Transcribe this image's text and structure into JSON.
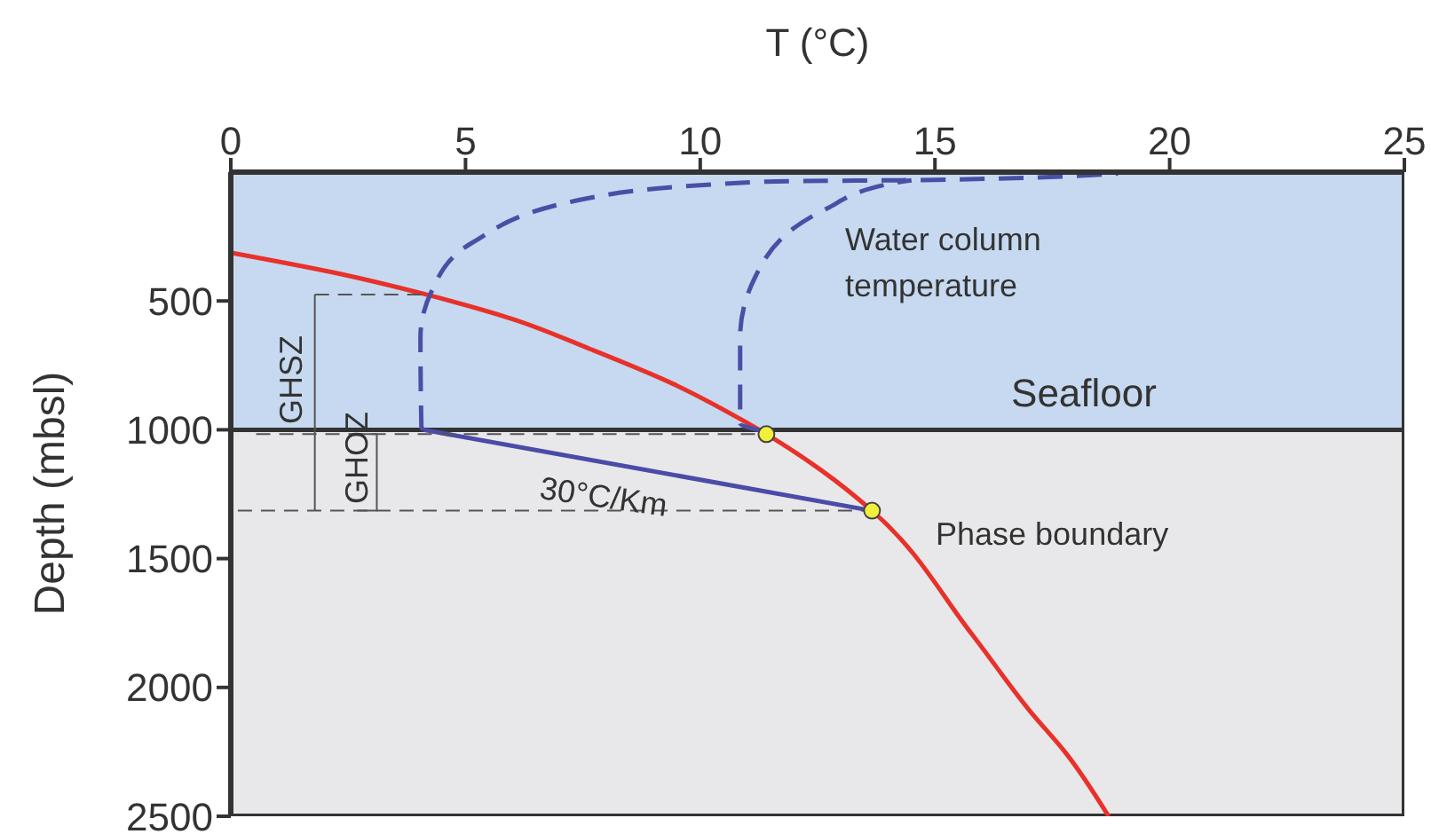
{
  "chart_data": {
    "type": "line",
    "xlabel": "T (°C)",
    "ylabel": "Depth (mbsl)",
    "xlim": [
      0,
      25
    ],
    "xticks": [
      0,
      5,
      10,
      15,
      20,
      25
    ],
    "ylim": [
      2500,
      0
    ],
    "yticks": [
      500,
      1000,
      1500,
      2000,
      2500
    ],
    "grid": false,
    "bands": [
      {
        "axis": "y",
        "from": 0,
        "to": 1000,
        "color": "#c6d9f0"
      },
      {
        "axis": "y",
        "from": 1000,
        "to": 2500,
        "color": "#e8e8ea"
      }
    ],
    "ref_lines": [
      {
        "axis": "y",
        "value": 1000,
        "label": "Seafloor",
        "color": "#333333",
        "line_style": "solid"
      }
    ],
    "series": [
      {
        "color": "#e8312a",
        "line_style": "solid",
        "x": [
          0.04,
          2.2,
          4.16,
          6.0,
          7.66,
          9.4,
          10.91,
          11.41,
          12.6,
          13.66,
          15.79,
          17.03,
          17.79,
          18.7
        ],
        "values": [
          314,
          390,
          475,
          570,
          687,
          820,
          964,
          1017,
          1160,
          1314,
          1794,
          2093,
          2255,
          2500
        ]
      },
      {
        "color": "#4a4fa6",
        "line_style": "dashed",
        "x": [
          4.1,
          4.06,
          4.04,
          4.29,
          5.16,
          7.65,
          11.4,
          15.0,
          18.9
        ],
        "values": [
          1000,
          987,
          641,
          457,
          272,
          100,
          37,
          30,
          5
        ]
      },
      {
        "color": "#4a4fa6",
        "line_style": "dashed",
        "x": [
          11.35,
          10.85,
          10.85,
          11.16,
          12.66,
          14.16,
          14.5
        ],
        "values": [
          1005,
          975,
          641,
          411,
          145,
          41,
          32
        ]
      },
      {
        "color": "#4b4ba8",
        "line_style": "solid",
        "x": [
          4.1,
          13.66
        ],
        "values": [
          1000,
          1314
        ]
      },
      {
        "color": "#555555",
        "line_style": "dashed",
        "x": [
          1.79,
          4.16
        ],
        "values": [
          475,
          475
        ]
      },
      {
        "color": "#555555",
        "line_style": "dashed",
        "x": [
          0.54,
          11.41
        ],
        "values": [
          1017,
          1017
        ]
      },
      {
        "color": "#555555",
        "line_style": "dashed",
        "x": [
          0.15,
          13.66
        ],
        "values": [
          1314,
          1314
        ]
      },
      {
        "color": "#555555",
        "line_style": "solid",
        "x": [
          1.79,
          1.79
        ],
        "values": [
          475,
          1314
        ]
      },
      {
        "color": "#555555",
        "line_style": "solid",
        "x": [
          2.7,
          3.11,
          3.11,
          2.7
        ],
        "values": [
          1017,
          1017,
          1314,
          1314
        ]
      },
      {
        "type": "scatter",
        "color": "#f2ef3a",
        "marker": "circle",
        "x": [
          11.41,
          13.66
        ],
        "values": [
          1017,
          1314
        ]
      }
    ],
    "annotations": [
      "Water column\ntemperature",
      "Phase boundary",
      "30°C/Km",
      "GHSZ",
      "GHOZ"
    ]
  }
}
